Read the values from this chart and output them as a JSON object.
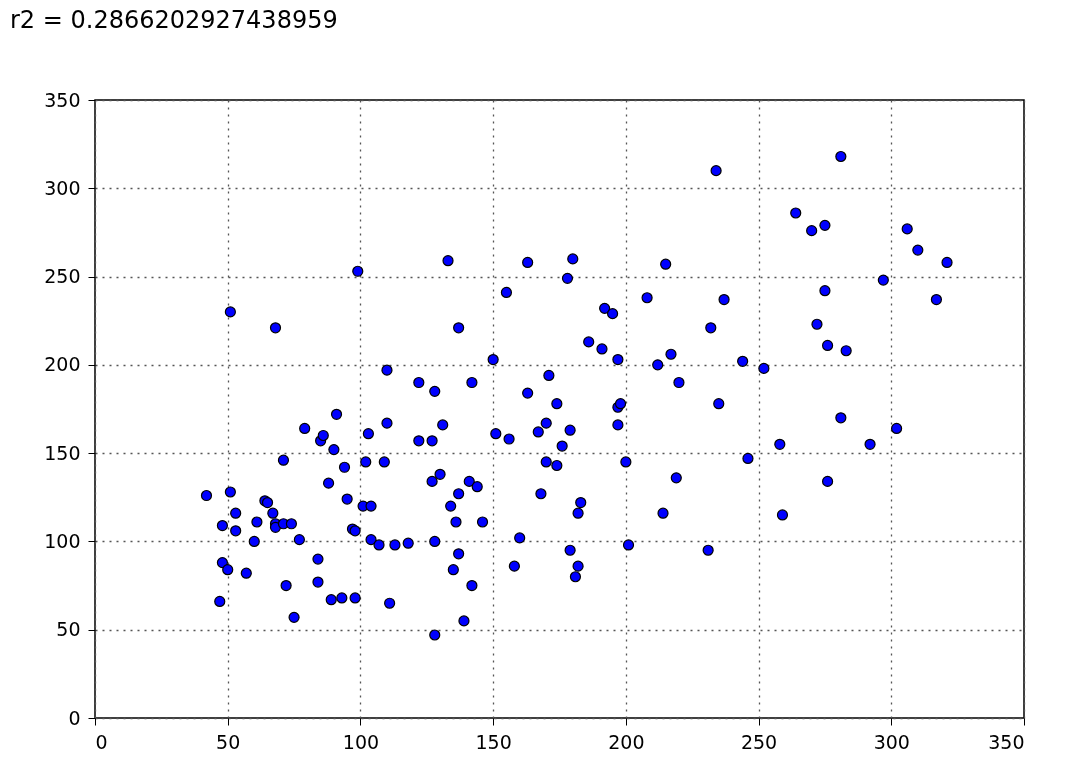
{
  "chart_data": {
    "type": "scatter",
    "title": "r2 = 0.2866202927438959",
    "x": [
      42,
      48,
      48,
      47,
      50,
      51,
      51,
      53,
      53,
      57,
      60,
      61,
      64,
      65,
      67,
      68,
      68,
      68,
      71,
      71,
      72,
      74,
      75,
      77,
      79,
      84,
      84,
      85,
      86,
      88,
      89,
      90,
      91,
      93,
      94,
      95,
      97,
      98,
      98,
      99,
      101,
      102,
      103,
      104,
      104,
      107,
      109,
      110,
      110,
      111,
      113,
      118,
      122,
      122,
      127,
      127,
      128,
      128,
      128,
      130,
      131,
      133,
      134,
      135,
      136,
      137,
      137,
      137,
      139,
      141,
      142,
      142,
      144,
      146,
      150,
      151,
      156,
      155,
      158,
      160,
      163,
      163,
      167,
      168,
      170,
      170,
      171,
      174,
      174,
      176,
      178,
      179,
      179,
      180,
      181,
      182,
      183,
      182,
      186,
      191,
      192,
      195,
      197,
      197,
      197,
      198,
      200,
      201,
      208,
      212,
      214,
      215,
      217,
      219,
      220,
      231,
      232,
      234,
      235,
      237,
      244,
      246,
      252,
      258,
      259,
      264,
      270,
      272,
      275,
      275,
      276,
      276,
      281,
      281,
      283,
      292,
      297,
      302,
      306,
      310,
      317,
      321
    ],
    "values": [
      126,
      109,
      88,
      66,
      84,
      128,
      230,
      116,
      106,
      82,
      100,
      111,
      123,
      122,
      116,
      110,
      108,
      221,
      110,
      146,
      75,
      110,
      57,
      101,
      164,
      90,
      77,
      157,
      160,
      133,
      67,
      152,
      172,
      68,
      142,
      124,
      107,
      106,
      68,
      253,
      120,
      145,
      161,
      120,
      101,
      98,
      145,
      167,
      197,
      65,
      98,
      99,
      190,
      157,
      157,
      134,
      185,
      47,
      100,
      138,
      166,
      259,
      120,
      84,
      111,
      127,
      93,
      221,
      55,
      134,
      190,
      75,
      131,
      111,
      203,
      161,
      158,
      241,
      86,
      102,
      184,
      258,
      162,
      127,
      167,
      145,
      194,
      143,
      178,
      154,
      249,
      95,
      163,
      260,
      80,
      116,
      122,
      86,
      213,
      209,
      232,
      229,
      203,
      166,
      176,
      178,
      145,
      98,
      238,
      200,
      116,
      257,
      206,
      136,
      190,
      95,
      221,
      310,
      178,
      237,
      202,
      147,
      198,
      155,
      115,
      286,
      276,
      223,
      279,
      242,
      211,
      134,
      318,
      170,
      208,
      155,
      248,
      164,
      277,
      265,
      237,
      258
    ],
    "color": "#0000ff",
    "marker": "circle",
    "xlim": [
      0,
      350
    ],
    "xticks": [
      0,
      50,
      100,
      150,
      200,
      250,
      300,
      350
    ],
    "ylim": [
      0,
      350
    ],
    "yticks": [
      0,
      50,
      100,
      150,
      200,
      250,
      300,
      350
    ],
    "grid": true
  }
}
